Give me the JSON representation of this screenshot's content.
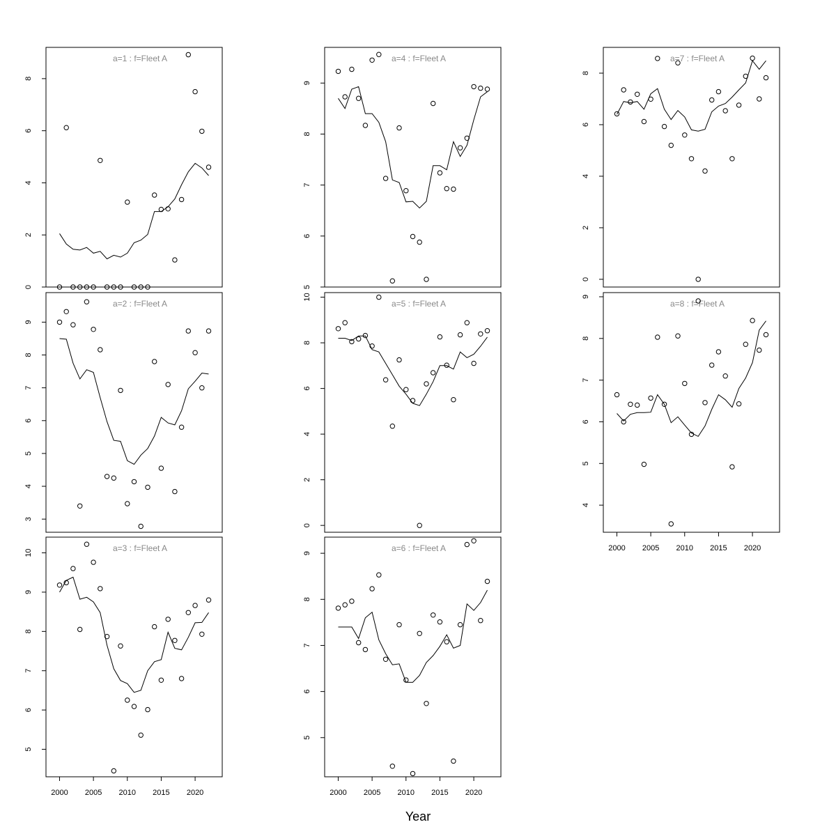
{
  "colors": {
    "fit_line": "#000000",
    "points": "#000000",
    "panel_title": "#888888",
    "frame": "#000000"
  },
  "chart_data": {
    "type": "scatter",
    "xlabel": "Year",
    "x": [
      2000,
      2001,
      2002,
      2003,
      2004,
      2005,
      2006,
      2007,
      2008,
      2009,
      2010,
      2011,
      2012,
      2013,
      2014,
      2015,
      2016,
      2017,
      2018,
      2019,
      2020,
      2021,
      2022
    ],
    "xticks": [
      2000,
      2005,
      2010,
      2015,
      2020
    ],
    "xlim": [
      1998,
      2024
    ],
    "panels": [
      {
        "title": "a=1  :  f=Fleet A",
        "ylim": [
          0,
          9.2
        ],
        "yticks": [
          0,
          2,
          4,
          6,
          8
        ],
        "observed": [
          0,
          6.12,
          0,
          0,
          0,
          0,
          4.86,
          0,
          0,
          0,
          3.26,
          0,
          0,
          0,
          3.53,
          2.98,
          3.0,
          1.04,
          3.36,
          8.92,
          7.5,
          5.98,
          4.6
        ],
        "fitted": [
          2.05,
          1.65,
          1.45,
          1.42,
          1.52,
          1.3,
          1.37,
          1.08,
          1.22,
          1.15,
          1.3,
          1.7,
          1.8,
          2.02,
          2.9,
          2.9,
          3.08,
          3.38,
          3.93,
          4.42,
          4.75,
          4.57,
          4.28
        ]
      },
      {
        "title": "a=2  :  f=Fleet A",
        "ylim": [
          2.6,
          9.9
        ],
        "yticks": [
          3,
          4,
          5,
          6,
          7,
          8,
          9
        ],
        "observed": [
          9.0,
          9.32,
          8.92,
          3.4,
          9.62,
          8.78,
          8.16,
          4.3,
          4.25,
          6.92,
          3.47,
          4.14,
          2.78,
          3.97,
          7.8,
          4.55,
          7.1,
          3.84,
          5.8,
          8.73,
          8.07,
          7.0,
          8.73
        ],
        "fitted": [
          8.5,
          8.48,
          7.75,
          7.27,
          7.55,
          7.47,
          6.7,
          5.97,
          5.4,
          5.37,
          4.78,
          4.67,
          4.95,
          5.15,
          5.53,
          6.1,
          5.93,
          5.87,
          6.3,
          6.97,
          7.2,
          7.45,
          7.42
        ]
      },
      {
        "title": "a=3  :  f=Fleet A",
        "ylim": [
          4.3,
          10.4
        ],
        "yticks": [
          5,
          6,
          7,
          8,
          9,
          10
        ],
        "observed": [
          9.18,
          9.24,
          9.6,
          8.05,
          10.22,
          9.76,
          9.09,
          7.87,
          4.45,
          7.63,
          6.25,
          6.09,
          5.36,
          6.01,
          8.12,
          6.76,
          8.31,
          7.77,
          6.8,
          8.48,
          8.66,
          7.93,
          8.8
        ],
        "fitted": [
          9.0,
          9.3,
          9.38,
          8.82,
          8.87,
          8.75,
          8.48,
          7.65,
          7.05,
          6.75,
          6.67,
          6.45,
          6.5,
          7.0,
          7.23,
          7.28,
          7.98,
          7.57,
          7.53,
          7.85,
          8.22,
          8.23,
          8.48
        ]
      },
      {
        "title": "a=4  :  f=Fleet A",
        "ylim": [
          5.0,
          9.7
        ],
        "yticks": [
          5,
          6,
          7,
          8,
          9
        ],
        "observed": [
          9.23,
          8.73,
          9.27,
          8.7,
          8.17,
          9.45,
          9.56,
          7.13,
          5.12,
          8.12,
          6.89,
          5.99,
          5.88,
          5.15,
          8.6,
          7.24,
          6.93,
          6.92,
          7.73,
          7.92,
          8.93,
          8.9,
          8.88
        ],
        "fitted": [
          8.7,
          8.5,
          8.88,
          8.93,
          8.4,
          8.4,
          8.23,
          7.85,
          7.1,
          7.05,
          6.67,
          6.68,
          6.55,
          6.68,
          7.38,
          7.38,
          7.3,
          7.85,
          7.56,
          7.78,
          8.28,
          8.73,
          8.83
        ]
      },
      {
        "title": "a=5  :  f=Fleet A",
        "ylim": [
          -0.3,
          10.2
        ],
        "yticks": [
          0,
          2,
          4,
          6,
          8,
          10
        ],
        "observed": [
          8.62,
          8.88,
          8.05,
          8.17,
          8.32,
          7.86,
          10.0,
          6.38,
          4.35,
          7.25,
          5.95,
          5.47,
          0,
          6.2,
          6.69,
          8.26,
          7.02,
          5.51,
          8.35,
          8.88,
          7.1,
          8.39,
          8.53
        ],
        "fitted": [
          8.2,
          8.2,
          8.1,
          8.3,
          8.3,
          7.7,
          7.6,
          7.1,
          6.6,
          6.1,
          5.75,
          5.35,
          5.25,
          5.75,
          6.3,
          7.0,
          7.0,
          6.85,
          7.6,
          7.35,
          7.5,
          7.85,
          8.25
        ]
      },
      {
        "title": "a=6  :  f=Fleet A",
        "ylim": [
          4.15,
          9.35
        ],
        "yticks": [
          5,
          6,
          7,
          8,
          9
        ],
        "observed": [
          7.81,
          7.88,
          7.96,
          7.06,
          6.91,
          8.23,
          8.53,
          6.7,
          4.38,
          7.45,
          6.25,
          4.22,
          7.26,
          5.74,
          7.66,
          7.51,
          7.08,
          4.49,
          7.45,
          9.19,
          9.27,
          7.54,
          8.39
        ],
        "fitted": [
          7.4,
          7.4,
          7.4,
          7.15,
          7.6,
          7.72,
          7.12,
          6.82,
          6.58,
          6.6,
          6.2,
          6.2,
          6.35,
          6.63,
          6.78,
          6.98,
          7.23,
          6.94,
          7.0,
          7.9,
          7.76,
          7.93,
          8.2
        ]
      },
      {
        "title": "a=7  :  f=Fleet A",
        "ylim": [
          -0.3,
          9.0
        ],
        "yticks": [
          0,
          2,
          4,
          6,
          8
        ],
        "observed": [
          6.42,
          7.35,
          6.88,
          7.18,
          6.12,
          6.99,
          8.57,
          5.93,
          5.2,
          8.4,
          5.6,
          4.68,
          0,
          4.2,
          6.96,
          7.28,
          6.54,
          4.68,
          6.76,
          7.88,
          8.58,
          7.0,
          7.82
        ],
        "fitted": [
          6.4,
          6.9,
          6.85,
          6.9,
          6.6,
          7.2,
          7.4,
          6.6,
          6.2,
          6.55,
          6.3,
          5.8,
          5.75,
          5.82,
          6.5,
          6.72,
          6.82,
          7.07,
          7.35,
          7.62,
          8.48,
          8.15,
          8.48
        ]
      },
      {
        "title": "a=8  :  f=Fleet A",
        "ylim": [
          3.35,
          9.1
        ],
        "yticks": [
          4,
          5,
          6,
          7,
          8,
          9
        ],
        "observed": [
          6.65,
          6.0,
          6.42,
          6.4,
          4.98,
          6.57,
          8.03,
          6.42,
          3.55,
          8.06,
          6.92,
          5.7,
          8.9,
          6.46,
          7.36,
          7.68,
          7.1,
          4.92,
          6.43,
          7.86,
          8.43,
          7.72,
          8.09
        ],
        "fitted": [
          6.2,
          6.02,
          6.18,
          6.22,
          6.22,
          6.23,
          6.65,
          6.42,
          5.98,
          6.12,
          5.92,
          5.73,
          5.65,
          5.9,
          6.3,
          6.65,
          6.53,
          6.35,
          6.8,
          7.05,
          7.42,
          8.2,
          8.42
        ]
      }
    ]
  }
}
